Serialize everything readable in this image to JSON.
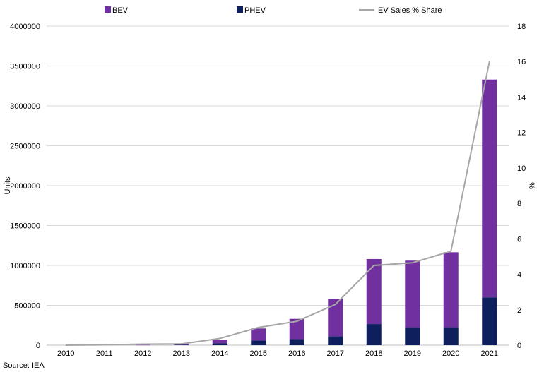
{
  "chart_data": {
    "type": "bar",
    "stacked": true,
    "categories": [
      "2010",
      "2011",
      "2012",
      "2013",
      "2014",
      "2015",
      "2016",
      "2017",
      "2018",
      "2019",
      "2020",
      "2021"
    ],
    "series": [
      {
        "name": "PHEV",
        "axis": "left",
        "type": "bar",
        "color": "#0d1f5c",
        "values": [
          0,
          0,
          0,
          5000,
          25000,
          60000,
          75000,
          110000,
          265000,
          225000,
          225000,
          600000
        ]
      },
      {
        "name": "BEV",
        "axis": "left",
        "type": "bar",
        "color": "#7030a0",
        "values": [
          0,
          0,
          3000,
          9000,
          45000,
          150000,
          255000,
          470000,
          815000,
          835000,
          940000,
          2730000
        ]
      },
      {
        "name": "EV Sales % Share",
        "axis": "right",
        "type": "line",
        "color": "#a6a6a6",
        "values": [
          0,
          0.02,
          0.06,
          0.07,
          0.38,
          1.0,
          1.35,
          2.3,
          4.5,
          4.65,
          5.3,
          16.0
        ]
      }
    ],
    "ylabel": "Units",
    "ylim": [
      0,
      4000000
    ],
    "yticks": [
      "0",
      "500000",
      "1000000",
      "1500000",
      "2000000",
      "2500000",
      "3000000",
      "3500000",
      "4000000"
    ],
    "y2label": "%",
    "y2lim": [
      0,
      18
    ],
    "y2ticks": [
      "0",
      "2",
      "4",
      "6",
      "8",
      "10",
      "12",
      "14",
      "16",
      "18"
    ],
    "grid": true,
    "legend_position": "top",
    "legend": [
      {
        "label": "BEV",
        "color": "#7030a0",
        "kind": "box"
      },
      {
        "label": "PHEV",
        "color": "#0d1f5c",
        "kind": "box"
      },
      {
        "label": "EV Sales % Share",
        "color": "#a6a6a6",
        "kind": "line"
      }
    ],
    "source": "Source: IEA"
  }
}
